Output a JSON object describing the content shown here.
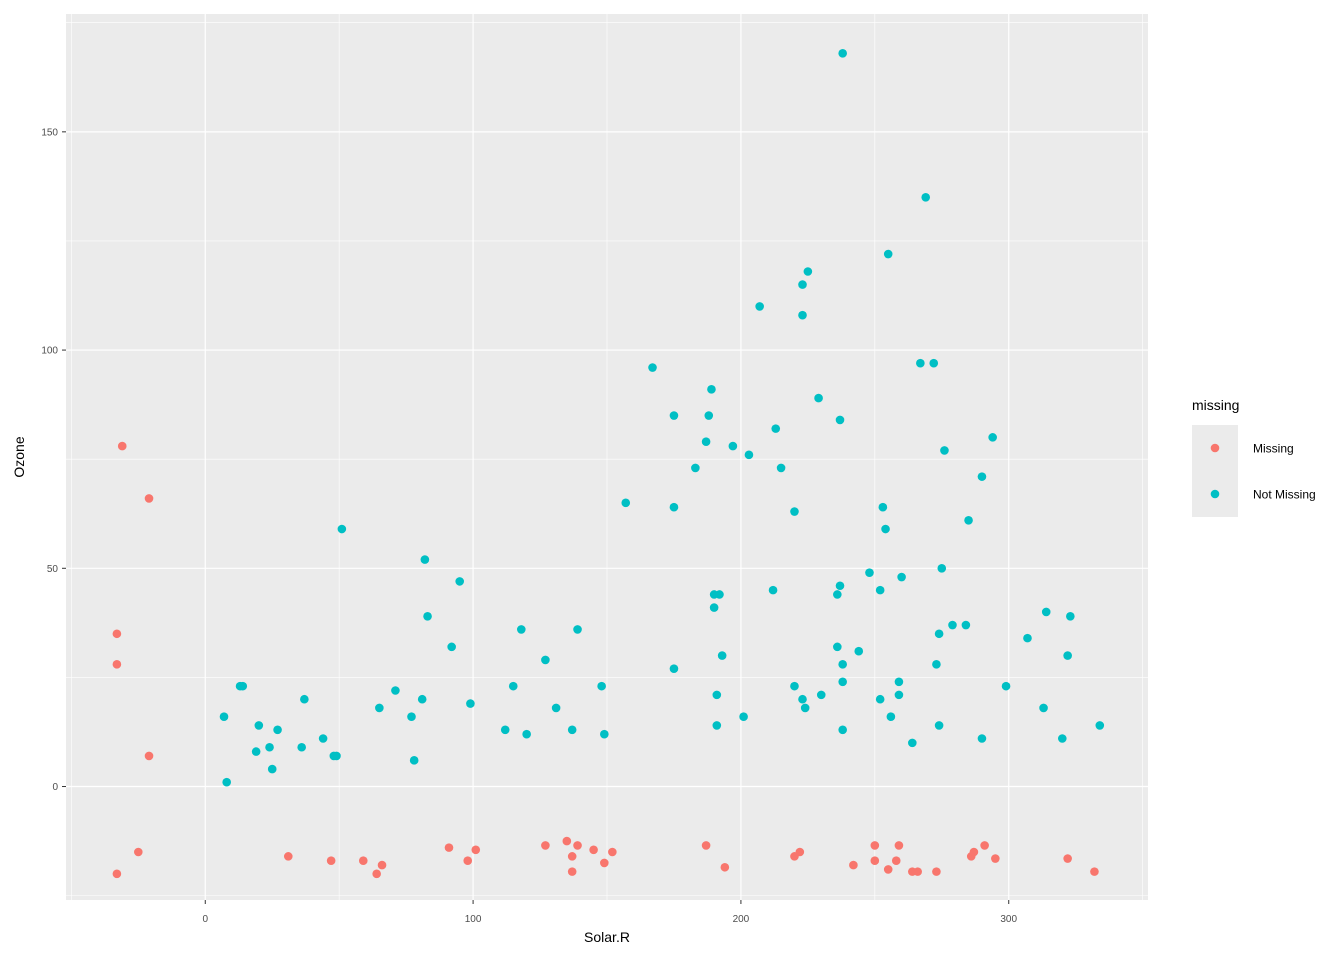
{
  "chart_data": {
    "type": "scatter",
    "title": "",
    "xlabel": "Solar.R",
    "ylabel": "Ozone",
    "xlim": [
      -52,
      352
    ],
    "ylim": [
      -26,
      177
    ],
    "x_ticks": [
      0,
      100,
      200,
      300
    ],
    "y_ticks": [
      0,
      50,
      100,
      150
    ],
    "grid": true,
    "legend": {
      "title": "missing",
      "position": "right"
    },
    "colors": {
      "Missing": "#F8766D",
      "Not Missing": "#00BFC4",
      "panel": "#EBEBEB",
      "grid": "#FFFFFF"
    },
    "series": [
      {
        "name": "Missing",
        "points": [
          [
            -31,
            78
          ],
          [
            -21,
            66
          ],
          [
            -33,
            35
          ],
          [
            -33,
            28
          ],
          [
            -21,
            7
          ],
          [
            -33,
            -20
          ],
          [
            -25,
            -15
          ],
          [
            31,
            -16
          ],
          [
            47,
            -17
          ],
          [
            59,
            -17
          ],
          [
            64,
            -20
          ],
          [
            66,
            -18
          ],
          [
            91,
            -14
          ],
          [
            98,
            -17
          ],
          [
            101,
            -14.5
          ],
          [
            127,
            -13.5
          ],
          [
            135,
            -12.5
          ],
          [
            137,
            -16
          ],
          [
            139,
            -13.5
          ],
          [
            137,
            -19.5
          ],
          [
            145,
            -14.5
          ],
          [
            149,
            -17.5
          ],
          [
            152,
            -15
          ],
          [
            187,
            -13.5
          ],
          [
            194,
            -18.5
          ],
          [
            220,
            -16
          ],
          [
            222,
            -15
          ],
          [
            242,
            -18
          ],
          [
            250,
            -13.5
          ],
          [
            250,
            -17
          ],
          [
            255,
            -19
          ],
          [
            258,
            -17
          ],
          [
            259,
            -13.5
          ],
          [
            264,
            -19.5
          ],
          [
            266,
            -19.5
          ],
          [
            273,
            -19.5
          ],
          [
            286,
            -16
          ],
          [
            287,
            -15
          ],
          [
            291,
            -13.5
          ],
          [
            295,
            -16.5
          ],
          [
            322,
            -16.5
          ],
          [
            332,
            -19.5
          ]
        ]
      },
      {
        "name": "Not Missing",
        "points": [
          [
            7,
            16
          ],
          [
            8,
            1
          ],
          [
            13,
            23
          ],
          [
            14,
            23
          ],
          [
            19,
            8
          ],
          [
            20,
            14
          ],
          [
            24,
            9
          ],
          [
            25,
            4
          ],
          [
            27,
            13
          ],
          [
            36,
            9
          ],
          [
            37,
            20
          ],
          [
            44,
            11
          ],
          [
            48,
            7
          ],
          [
            49,
            7
          ],
          [
            51,
            59
          ],
          [
            65,
            18
          ],
          [
            71,
            22
          ],
          [
            77,
            16
          ],
          [
            78,
            6
          ],
          [
            81,
            20
          ],
          [
            82,
            52
          ],
          [
            83,
            39
          ],
          [
            92,
            32
          ],
          [
            95,
            47
          ],
          [
            99,
            19
          ],
          [
            112,
            13
          ],
          [
            115,
            23
          ],
          [
            118,
            36
          ],
          [
            120,
            12
          ],
          [
            127,
            29
          ],
          [
            131,
            18
          ],
          [
            137,
            13
          ],
          [
            139,
            36
          ],
          [
            148,
            23
          ],
          [
            149,
            12
          ],
          [
            157,
            65
          ],
          [
            167,
            96
          ],
          [
            175,
            85
          ],
          [
            175,
            64
          ],
          [
            175,
            27
          ],
          [
            183,
            73
          ],
          [
            187,
            79
          ],
          [
            188,
            85
          ],
          [
            189,
            91
          ],
          [
            190,
            44
          ],
          [
            190,
            41
          ],
          [
            191,
            14
          ],
          [
            191,
            21
          ],
          [
            192,
            44
          ],
          [
            193,
            30
          ],
          [
            197,
            78
          ],
          [
            201,
            16
          ],
          [
            203,
            76
          ],
          [
            207,
            110
          ],
          [
            212,
            45
          ],
          [
            213,
            82
          ],
          [
            215,
            73
          ],
          [
            220,
            63
          ],
          [
            220,
            23
          ],
          [
            223,
            115
          ],
          [
            223,
            108
          ],
          [
            223,
            20
          ],
          [
            224,
            18
          ],
          [
            225,
            118
          ],
          [
            229,
            89
          ],
          [
            230,
            21
          ],
          [
            236,
            44
          ],
          [
            236,
            32
          ],
          [
            237,
            84
          ],
          [
            237,
            46
          ],
          [
            238,
            168
          ],
          [
            238,
            28
          ],
          [
            238,
            24
          ],
          [
            238,
            13
          ],
          [
            244,
            31
          ],
          [
            248,
            49
          ],
          [
            252,
            45
          ],
          [
            252,
            20
          ],
          [
            253,
            64
          ],
          [
            254,
            59
          ],
          [
            255,
            122
          ],
          [
            256,
            16
          ],
          [
            259,
            24
          ],
          [
            259,
            21
          ],
          [
            260,
            48
          ],
          [
            264,
            10
          ],
          [
            267,
            97
          ],
          [
            269,
            135
          ],
          [
            272,
            97
          ],
          [
            273,
            28
          ],
          [
            274,
            35
          ],
          [
            274,
            14
          ],
          [
            275,
            50
          ],
          [
            276,
            77
          ],
          [
            279,
            37
          ],
          [
            284,
            37
          ],
          [
            285,
            61
          ],
          [
            290,
            71
          ],
          [
            290,
            11
          ],
          [
            294,
            80
          ],
          [
            299,
            23
          ],
          [
            307,
            34
          ],
          [
            313,
            18
          ],
          [
            314,
            40
          ],
          [
            320,
            11
          ],
          [
            322,
            30
          ],
          [
            323,
            39
          ],
          [
            334,
            14
          ]
        ]
      }
    ]
  }
}
